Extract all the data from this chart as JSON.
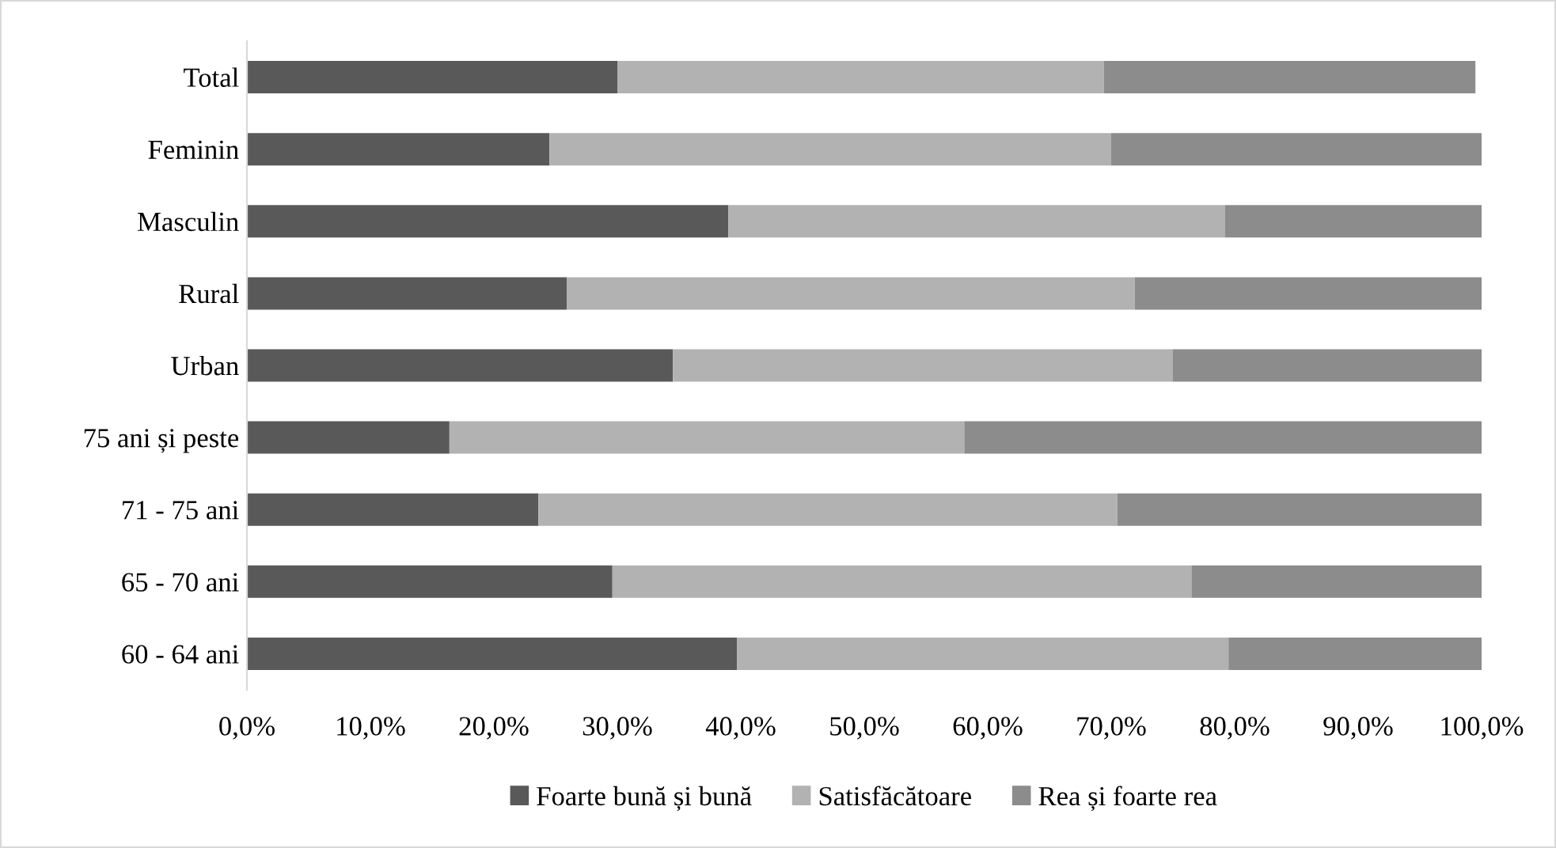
{
  "chart_data": {
    "type": "bar",
    "orientation": "horizontal",
    "stacked": true,
    "legend": "bottom",
    "grid": false,
    "categories": [
      "Total",
      "Feminin",
      "Masculin",
      "Rural",
      "Urban",
      "75 ani și peste",
      "71 - 75 ani",
      "65 - 70 ani",
      "60 - 64 ani"
    ],
    "series": [
      {
        "name": "Foarte bună și bună",
        "color": "#595959",
        "values": [
          30.0,
          24.5,
          39.0,
          25.9,
          34.5,
          16.4,
          23.6,
          29.6,
          39.7
        ]
      },
      {
        "name": "Satisfăcătoare",
        "color": "#b2b2b2",
        "values": [
          39.4,
          45.5,
          40.2,
          46.0,
          40.5,
          41.7,
          46.9,
          46.9,
          39.8
        ]
      },
      {
        "name": "Rea și foarte rea",
        "color": "#8c8c8c",
        "values": [
          30.1,
          30.0,
          20.8,
          28.1,
          25.0,
          41.9,
          29.5,
          23.5,
          20.5
        ]
      }
    ],
    "xlim": [
      0,
      100
    ],
    "xticks": [
      {
        "value": 0,
        "label": "0,0%"
      },
      {
        "value": 10,
        "label": "10,0%"
      },
      {
        "value": 20,
        "label": "20,0%"
      },
      {
        "value": 30,
        "label": "30,0%"
      },
      {
        "value": 40,
        "label": "40,0%"
      },
      {
        "value": 50,
        "label": "50,0%"
      },
      {
        "value": 60,
        "label": "60,0%"
      },
      {
        "value": 70,
        "label": "70,0%"
      },
      {
        "value": 80,
        "label": "80,0%"
      },
      {
        "value": 90,
        "label": "90,0%"
      },
      {
        "value": 100,
        "label": "100,0%"
      }
    ]
  }
}
